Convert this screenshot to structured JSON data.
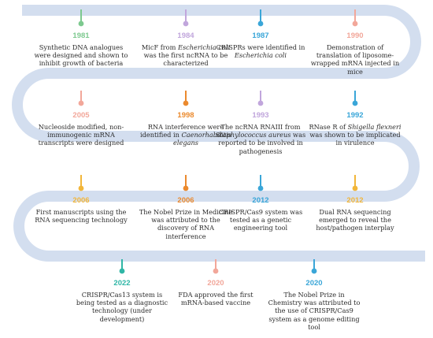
{
  "colors": {
    "track": "#d3deef",
    "green": "#7dc98f",
    "orange": "#eb8a2e",
    "blue": "#3aa6d8",
    "pink": "#f2a79a",
    "purple": "#c1a6dc",
    "yellow": "#f2b63a",
    "teal": "#2fb6a6"
  },
  "events": [
    {
      "id": "1981",
      "year": "1981",
      "color": "#7dc98f",
      "desc": "Synthetic DNA analogues were designed and shown to inhibit growth of bacteria"
    },
    {
      "id": "1984",
      "year": "1984",
      "color": "#c1a6dc",
      "desc_parts": [
        "MicF from ",
        "Escherichia coli",
        " was the first ncRNA to be characterized"
      ]
    },
    {
      "id": "1987",
      "year": "1987",
      "color": "#3aa6d8",
      "desc_parts": [
        "CRISPRs were identified in ",
        "Escherichia coli"
      ]
    },
    {
      "id": "1990",
      "year": "1990",
      "color": "#f2a79a",
      "desc": "Demonstration of translation of liposome-wrapped mRNA injected in mice"
    },
    {
      "id": "2005",
      "year": "2005",
      "color": "#f2a79a",
      "desc": "Nucleoside modified, non-immunogenic mRNA transcripts were designed"
    },
    {
      "id": "1998",
      "year": "1998",
      "color": "#eb8a2e",
      "desc_parts": [
        "RNA interference were identified in ",
        "Caenorhabditis elegans"
      ]
    },
    {
      "id": "1993",
      "year": "1993",
      "color": "#c1a6dc",
      "desc_parts": [
        "The ncRNA RNAIII from ",
        "Staphylococcus aureus",
        " was reported to be involved in pathogenesis"
      ]
    },
    {
      "id": "1992",
      "year": "1992",
      "color": "#3aa6d8",
      "desc_parts": [
        "RNase R of ",
        "Shigella flexneri",
        " was shown to be implicated in virulence"
      ]
    },
    {
      "id": "2006a",
      "year": "2006",
      "color": "#f2b63a",
      "desc": "First manuscripts using the RNA sequencing technology"
    },
    {
      "id": "2006b",
      "year": "2006",
      "color": "#eb8a2e",
      "desc": "The Nobel Prize in Medicine was attributed to the discovery of RNA interference"
    },
    {
      "id": "2012a",
      "year": "2012",
      "color": "#3aa6d8",
      "desc": "CRISPR/Cas9 system was tested as a genetic engineering tool"
    },
    {
      "id": "2012b",
      "year": "2012",
      "color": "#f2b63a",
      "desc": "Dual RNA sequencing emerged to reveal the host/pathogen interplay"
    },
    {
      "id": "2022",
      "year": "2022",
      "color": "#2fb6a6",
      "desc": "CRISPR/Cas13 system is being tested as a diagnostic technology (under development)"
    },
    {
      "id": "2020a",
      "year": "2020",
      "color": "#f2a79a",
      "desc": "FDA approved the first mRNA-based vaccine"
    },
    {
      "id": "2020b",
      "year": "2020",
      "color": "#3aa6d8",
      "desc": "The Nobel Prize in Chemistry was attributed to the use of CRISPR/Cas9 system as a genome editing tool"
    }
  ]
}
